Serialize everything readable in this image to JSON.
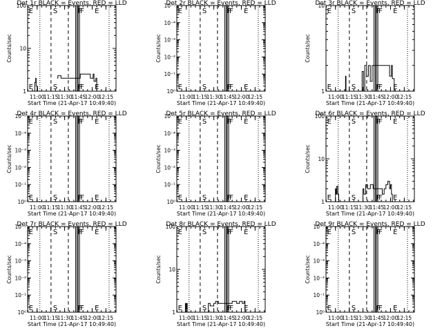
{
  "chart_data": [
    {
      "type": "line",
      "title": "Det 1r BLACK = Events, RED = LLD",
      "xlabel": "Start Time (21-Apr-17 10:49:40)",
      "ylabel": "Counts/sec",
      "yscale": "log",
      "ylim": [
        1,
        100
      ],
      "y_ticks": [
        "1",
        "10",
        "100"
      ],
      "xlim": [
        "10:49:40",
        "12:26:00"
      ],
      "x_ticks": [
        "11:00",
        "11:15",
        "11:30",
        "11:45",
        "12:00",
        "12:15"
      ],
      "markers": {
        "E": [
          "10:50:10",
          "12:02:00"
        ],
        "S": [
          "11:15:10"
        ],
        "F": [
          "11:42:00",
          "11:44:40"
        ]
      },
      "series": [
        {
          "x": [
            "10:56:00",
            "10:57:30",
            "10:58:30",
            "10:59:00",
            "11:00:30",
            "11:03:00",
            "11:04:00",
            "11:22:00",
            "11:22:40",
            "11:26:00",
            "11:30:00",
            "11:40:00",
            "11:47:00",
            "11:55:00",
            "11:58:00",
            "12:01:00",
            "12:02:00",
            "12:04:00",
            "12:05:00"
          ],
          "y": [
            1.0,
            1.6,
            2.0,
            1.3,
            1.0,
            null,
            null,
            2.0,
            2.3,
            2.0,
            2.0,
            2.0,
            2.5,
            2.5,
            2.0,
            2.5,
            1.7,
            2.0,
            1.0
          ]
        }
      ]
    },
    {
      "type": "line",
      "title": "Det 2r BLACK = Events, RED = LLD",
      "xlabel": "Start Time (21-Apr-17 10:49:40)",
      "ylabel": "Counts/sec",
      "yscale": "log",
      "ylim": [
        1,
        100000
      ],
      "y_ticks": [
        "10⁰",
        "10⁻¹",
        "10⁻²",
        "10⁻³",
        "10⁻⁴",
        "10⁻⁵"
      ],
      "xlim": [
        "10:49:40",
        "12:26:00"
      ],
      "x_ticks": [
        "11:00",
        "11:15",
        "11:30",
        "11:45",
        "12:00",
        "12:15"
      ],
      "markers": {
        "E": [
          "10:50:10",
          "12:02:00"
        ],
        "S": [
          "11:15:10"
        ],
        "F": [
          "11:42:00",
          "11:44:40"
        ]
      },
      "series": []
    },
    {
      "type": "line",
      "title": "Det 3r BLACK = Events, RED = LLD",
      "xlabel": "Start Time (21-Apr-17 10:49:40)",
      "ylabel": "Counts/sec",
      "yscale": "log",
      "ylim": [
        1,
        10
      ],
      "y_ticks": [
        "1",
        "10"
      ],
      "xlim": [
        "10:49:40",
        "12:26:00"
      ],
      "x_ticks": [
        "11:00",
        "11:15",
        "11:30",
        "11:45",
        "12:00",
        "12:15"
      ],
      "markers": {
        "E": [
          "10:50:10",
          "12:02:00"
        ],
        "S": [
          "11:15:10"
        ],
        "F": [
          "11:42:00",
          "11:44:40"
        ]
      },
      "series": [
        {
          "x": [
            "11:10:30",
            "11:11:00",
            "11:11:30",
            "11:28:00",
            "11:29:00",
            "11:30:30",
            "11:32:00",
            "11:34:00",
            "11:36:00",
            "11:38:00",
            "11:40:00",
            "11:46:00",
            "11:50:00",
            "11:56:00",
            "11:59:00",
            "12:01:00",
            "12:02:00",
            "12:04:00"
          ],
          "y": [
            1.0,
            1.5,
            1.0,
            1.0,
            1.7,
            1.0,
            2.0,
            1.5,
            2.0,
            1.3,
            2.0,
            2.0,
            2.0,
            2.0,
            1.5,
            2.0,
            1.4,
            1.0
          ]
        }
      ]
    },
    {
      "type": "line",
      "title": "Det 4r BLACK = Events, RED = LLD",
      "xlabel": "Start Time (21-Apr-17 10:49:40)",
      "ylabel": "Counts/sec",
      "yscale": "log",
      "ylim": [
        1,
        100000
      ],
      "y_ticks": [
        "10⁰",
        "10⁻¹",
        "10⁻²",
        "10⁻³",
        "10⁻⁴",
        "10⁻⁵"
      ],
      "xlim": [
        "10:49:40",
        "12:26:00"
      ],
      "x_ticks": [
        "11:00",
        "11:15",
        "11:30",
        "11:45",
        "12:00",
        "12:15"
      ],
      "markers": {
        "E": [
          "10:50:10",
          "12:02:00"
        ],
        "S": [
          "11:15:10"
        ],
        "F": [
          "11:42:00",
          "11:44:40"
        ]
      },
      "series": []
    },
    {
      "type": "line",
      "title": "Det 5r BLACK = Events, RED = LLD",
      "xlabel": "Start Time (21-Apr-17 10:49:40)",
      "ylabel": "Counts/sec",
      "yscale": "log",
      "ylim": [
        1,
        100000
      ],
      "y_ticks": [
        "10⁰",
        "10⁻¹",
        "10⁻²",
        "10⁻³",
        "10⁻⁴",
        "10⁻⁵"
      ],
      "xlim": [
        "10:49:40",
        "12:26:00"
      ],
      "x_ticks": [
        "11:00",
        "11:15",
        "11:30",
        "11:45",
        "12:00",
        "12:15"
      ],
      "markers": {
        "E": [
          "10:50:10",
          "12:02:00"
        ],
        "S": [
          "11:15:10"
        ],
        "F": [
          "11:42:00",
          "11:44:40"
        ]
      },
      "series": []
    },
    {
      "type": "line",
      "title": "Det 6r BLACK = Events, RED = LLD",
      "xlabel": "Start Time (21-Apr-17 10:49:40)",
      "ylabel": "Counts/sec",
      "yscale": "log",
      "ylim": [
        1,
        100
      ],
      "y_ticks": [
        "1",
        "10",
        "100"
      ],
      "xlim": [
        "10:49:40",
        "12:26:00"
      ],
      "x_ticks": [
        "11:00",
        "11:15",
        "11:30",
        "11:45",
        "12:00",
        "12:15"
      ],
      "markers": {
        "E": [
          "10:50:10",
          "12:02:00"
        ],
        "S": [
          "11:15:10"
        ],
        "F": [
          "11:42:00",
          "11:44:40"
        ]
      },
      "series": [
        {
          "x": [
            "10:59:00",
            "11:00:00",
            "11:00:40",
            "11:01:30",
            "11:02:30",
            "11:03:30",
            "11:30:00",
            "11:31:00",
            "11:33:00",
            "11:35:00",
            "11:38:00",
            "11:41:00",
            "11:47:00",
            "11:51:00",
            "11:53:00",
            "11:55:00",
            "11:57:00",
            "11:59:00",
            "12:00:00",
            "12:01:00",
            "12:02:00"
          ],
          "y": [
            1.0,
            2.0,
            1.5,
            2.3,
            1.5,
            1.0,
            2.0,
            1.5,
            2.5,
            2.0,
            2.5,
            2.0,
            2.0,
            1.5,
            2.0,
            2.5,
            3.0,
            2.0,
            2.5,
            1.5,
            1.0
          ]
        }
      ]
    },
    {
      "type": "line",
      "title": "Det 7r BLACK = Events, RED = LLD",
      "xlabel": "Start Time (21-Apr-17 10:49:40)",
      "ylabel": "Counts/sec",
      "yscale": "log",
      "ylim": [
        1,
        100000
      ],
      "y_ticks": [
        "10⁰",
        "10⁻¹",
        "10⁻²",
        "10⁻³",
        "10⁻⁴",
        "10⁻⁵"
      ],
      "xlim": [
        "10:49:40",
        "12:26:00"
      ],
      "x_ticks": [
        "11:00",
        "11:15",
        "11:30",
        "11:45",
        "12:00",
        "12:15"
      ],
      "markers": {
        "E": [
          "10:50:10",
          "12:02:00"
        ],
        "S": [
          "11:15:10"
        ],
        "F": [
          "11:42:00",
          "11:44:40"
        ]
      },
      "series": []
    },
    {
      "type": "line",
      "title": "Det 8r BLACK = Events, RED = LLD",
      "xlabel": "Start Time (21-Apr-17 10:49:40)",
      "ylabel": "Counts/sec",
      "yscale": "log",
      "ylim": [
        1,
        100
      ],
      "y_ticks": [
        "1",
        "10",
        "100"
      ],
      "xlim": [
        "10:49:40",
        "12:26:00"
      ],
      "x_ticks": [
        "11:00",
        "11:15",
        "11:30",
        "11:45",
        "12:00",
        "12:15"
      ],
      "markers": {
        "E": [
          "10:50:10",
          "12:02:00"
        ],
        "S": [
          "11:15:10"
        ],
        "F": [
          "11:42:00",
          "11:44:40"
        ]
      },
      "series": [
        {
          "x": [
            "10:58:30",
            "10:59:00",
            "10:59:40",
            "11:00:30",
            "11:01:00",
            "11:22:00",
            "11:24:00",
            "11:26:00",
            "11:30:00",
            "11:32:00",
            "11:35:00",
            "11:40:00",
            "11:47:00",
            "11:50:00",
            "11:55:00",
            "11:58:00",
            "12:01:00",
            "12:03:00",
            "12:04:00"
          ],
          "y": [
            1.0,
            1.6,
            1.2,
            1.6,
            1.0,
            1.0,
            1.6,
            1.4,
            1.6,
            1.8,
            1.6,
            1.6,
            1.6,
            1.8,
            1.6,
            1.8,
            1.6,
            1.8,
            1.0
          ]
        }
      ]
    },
    {
      "type": "line",
      "title": "Det 9r BLACK = Events, RED = LLD",
      "xlabel": "Start Time (21-Apr-17 10:49:40)",
      "ylabel": "Counts/sec",
      "yscale": "log",
      "ylim": [
        1,
        100000
      ],
      "y_ticks": [
        "10⁰",
        "10⁻¹",
        "10⁻²",
        "10⁻³",
        "10⁻⁴",
        "10⁻⁵"
      ],
      "xlim": [
        "10:49:40",
        "12:26:00"
      ],
      "x_ticks": [
        "11:00",
        "11:15",
        "11:30",
        "11:45",
        "12:00",
        "12:15"
      ],
      "markers": {
        "E": [
          "10:50:10",
          "12:02:00"
        ],
        "S": [
          "11:15:10"
        ],
        "F": [
          "11:42:00",
          "11:44:40"
        ]
      },
      "series": []
    }
  ]
}
